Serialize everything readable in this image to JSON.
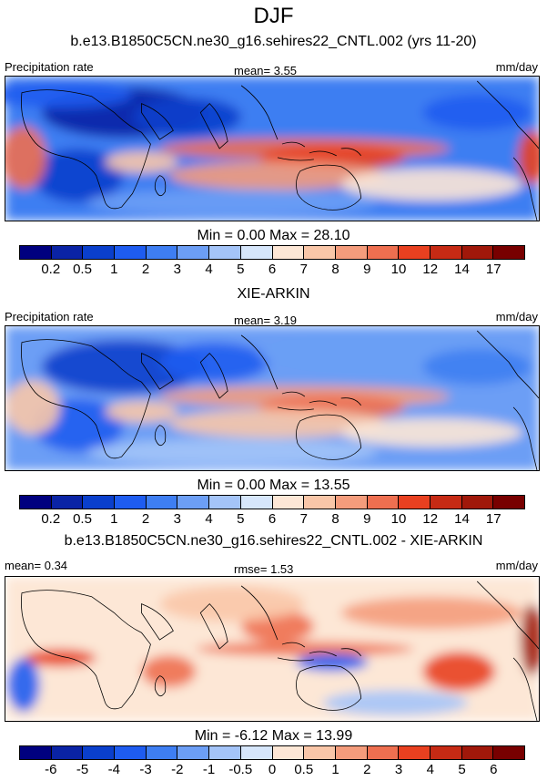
{
  "season": "DJF",
  "colors": {
    "abs": [
      "#00007f",
      "#0a23a5",
      "#0a3fcc",
      "#1e5cf0",
      "#3e7ef2",
      "#6c9ef5",
      "#a4c4f8",
      "#d6e6fb",
      "#fde7d6",
      "#f9c6a8",
      "#f49c7c",
      "#ee6f50",
      "#e84020",
      "#c62a14",
      "#a0180a",
      "#780000"
    ],
    "diff": [
      "#00007f",
      "#0a23a5",
      "#0a3fcc",
      "#1e5cf0",
      "#3e7ef2",
      "#6c9ef5",
      "#a4c4f8",
      "#d6e6fb",
      "#fde7d6",
      "#f9c6a8",
      "#f49c7c",
      "#ee6f50",
      "#e84020",
      "#c62a14",
      "#a0180a",
      "#780000"
    ],
    "land": "#000000"
  },
  "panels": [
    {
      "title": "b.e13.B1850C5CN.ne30_g16.sehires22_CNTL.002 (yrs 11-20)",
      "left_label": "Precipitation rate",
      "center_label": "mean=   3.55",
      "right_label": "mm/day",
      "minmax": "Min =   0.00 Max =  28.10",
      "ticks": [
        "0.2",
        "0.5",
        "1",
        "2",
        "3",
        "4",
        "5",
        "6",
        "7",
        "8",
        "9",
        "10",
        "12",
        "14",
        "17"
      ]
    },
    {
      "title": "XIE-ARKIN",
      "left_label": "Precipitation rate",
      "center_label": "mean=   3.19",
      "right_label": "mm/day",
      "minmax": "Min =   0.00 Max =  13.55",
      "ticks": [
        "0.2",
        "0.5",
        "1",
        "2",
        "3",
        "4",
        "5",
        "6",
        "7",
        "8",
        "9",
        "10",
        "12",
        "14",
        "17"
      ]
    },
    {
      "title": "b.e13.B1850C5CN.ne30_g16.sehires22_CNTL.002 - XIE-ARKIN",
      "left_label": "mean=   0.34",
      "center_label": "rmse=   1.53",
      "right_label": "mm/day",
      "minmax": "Min =  -6.12 Max =  13.99",
      "ticks": [
        "-6",
        "-5",
        "-4",
        "-3",
        "-2",
        "-1",
        "-0.5",
        "0",
        "0.5",
        "1",
        "2",
        "3",
        "4",
        "5",
        "6"
      ]
    }
  ]
}
